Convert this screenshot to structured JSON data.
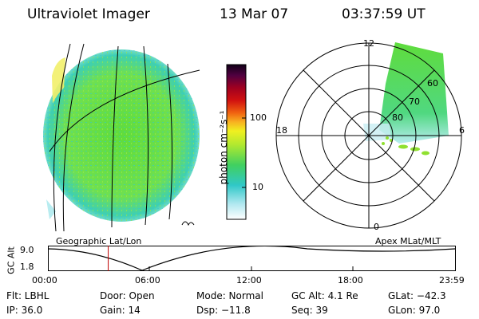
{
  "header": {
    "title": "Ultraviolet Imager",
    "date": "13 Mar 07",
    "time": "03:37:59 UT"
  },
  "colorbar": {
    "unit_label": "photon cm⁻²s⁻¹",
    "ticks": [
      "100",
      "10"
    ]
  },
  "left_image": {
    "caption": "Geographic Lat/Lon"
  },
  "polar_plot": {
    "caption": "Apex MLat/MLT",
    "mlt_labels": [
      "12",
      "18",
      "6",
      "0"
    ],
    "lat_labels": [
      "60",
      "70",
      "80"
    ]
  },
  "orbit_plot": {
    "ylabel": "GC Alt",
    "y_ticks": [
      "9.0",
      "1.8"
    ],
    "x_ticks": [
      "00:00",
      "06:00",
      "12:00",
      "18:00",
      "23:59"
    ],
    "current_time_fraction": 0.1465
  },
  "status": {
    "filter": "Flt: LBHL",
    "ip": "IP: 36.0",
    "door": "Door: Open",
    "gain": "Gain: 14",
    "mode": "Mode: Normal",
    "dsp": "Dsp:  −11.8",
    "gc_alt": "GC Alt: 4.1 Re",
    "seq": "Seq: 39",
    "glat": "GLat: −42.3",
    "glon": "GLon:  97.0"
  }
}
